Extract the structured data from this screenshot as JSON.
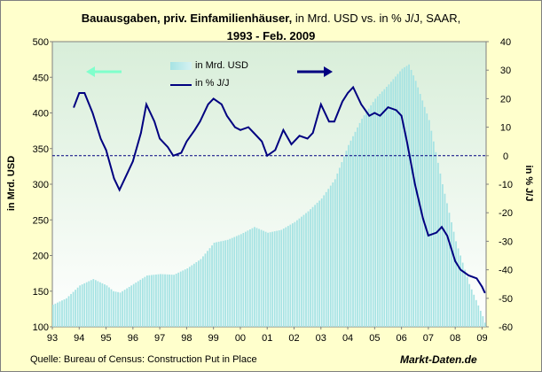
{
  "title": {
    "bold": "Bauausgaben, priv. Einfamilienhäuser,",
    "rest": " in Mrd. USD vs. in % J/J, SAAR,",
    "line2": "1993 - Feb. 2009"
  },
  "source": "Quelle: Bureau of Census: Construction Put in Place",
  "brand": "Markt-Daten.de",
  "colors": {
    "background": "#ffffcc",
    "bar_fill": "#a6e3e3",
    "line": "#000080",
    "arrow_left": "#80ffcc",
    "arrow_right": "#000080"
  },
  "chart_data": {
    "type": "bar+line",
    "x_ticks": [
      "93",
      "94",
      "95",
      "96",
      "97",
      "98",
      "99",
      "00",
      "01",
      "02",
      "03",
      "04",
      "05",
      "06",
      "07",
      "08",
      "09"
    ],
    "ylabel_left": "in Mrd. USD",
    "ylabel_right": "in % J/J",
    "ylim_left": [
      100,
      500
    ],
    "ylim_right": [
      -60,
      40
    ],
    "yticks_left": [
      "100",
      "150",
      "200",
      "250",
      "300",
      "350",
      "400",
      "450",
      "500"
    ],
    "yticks_right": [
      "-60",
      "-50",
      "-40",
      "-30",
      "-20",
      "-10",
      "0",
      "10",
      "20",
      "30",
      "40"
    ],
    "reference_line_right": 0,
    "legend_placement": "top-center",
    "series": [
      {
        "name": "in Mrd. USD",
        "kind": "bar",
        "axis": "left",
        "x": [
          1993.0,
          1993.5,
          1994.0,
          1994.5,
          1995.0,
          1995.25,
          1995.5,
          1996.0,
          1996.5,
          1997.0,
          1997.5,
          1998.0,
          1998.5,
          1999.0,
          1999.5,
          2000.0,
          2000.5,
          2001.0,
          2001.5,
          2002.0,
          2002.5,
          2003.0,
          2003.5,
          2004.0,
          2004.5,
          2005.0,
          2005.5,
          2006.0,
          2006.25,
          2006.5,
          2007.0,
          2007.5,
          2008.0,
          2008.5,
          2009.0,
          2009.1
        ],
        "values": [
          131,
          140,
          158,
          167,
          158,
          150,
          148,
          160,
          172,
          174,
          173,
          182,
          195,
          218,
          222,
          230,
          240,
          232,
          236,
          247,
          262,
          280,
          307,
          355,
          392,
          420,
          440,
          462,
          468,
          445,
          390,
          300,
          220,
          160,
          115,
          104
        ]
      },
      {
        "name": "in % J/J",
        "kind": "line",
        "axis": "right",
        "x": [
          1993.8,
          1994.0,
          1994.2,
          1994.5,
          1994.8,
          1995.0,
          1995.3,
          1995.5,
          1995.8,
          1996.0,
          1996.3,
          1996.5,
          1996.8,
          1997.0,
          1997.3,
          1997.5,
          1997.8,
          1998.0,
          1998.3,
          1998.5,
          1998.8,
          1999.0,
          1999.3,
          1999.5,
          1999.8,
          2000.0,
          2000.3,
          2000.5,
          2000.8,
          2001.0,
          2001.3,
          2001.6,
          2001.9,
          2002.2,
          2002.5,
          2002.7,
          2003.0,
          2003.3,
          2003.5,
          2003.8,
          2004.0,
          2004.2,
          2004.5,
          2004.8,
          2005.0,
          2005.2,
          2005.5,
          2005.8,
          2006.0,
          2006.2,
          2006.5,
          2006.8,
          2007.0,
          2007.3,
          2007.5,
          2007.7,
          2008.0,
          2008.2,
          2008.5,
          2008.8,
          2009.0,
          2009.1
        ],
        "values": [
          17,
          22,
          22,
          15,
          6,
          2,
          -8,
          -12,
          -6,
          -2,
          8,
          18,
          12,
          6,
          3,
          0,
          1,
          5,
          9,
          12,
          18,
          20,
          18,
          14,
          10,
          9,
          10,
          8,
          5,
          0,
          2,
          9,
          4,
          7,
          6,
          8,
          18,
          12,
          12,
          19,
          22,
          24,
          18,
          14,
          15,
          14,
          17,
          16,
          14,
          5,
          -10,
          -22,
          -28,
          -27,
          -25,
          -28,
          -37,
          -40,
          -42,
          -43,
          -46,
          -48
        ]
      }
    ]
  }
}
